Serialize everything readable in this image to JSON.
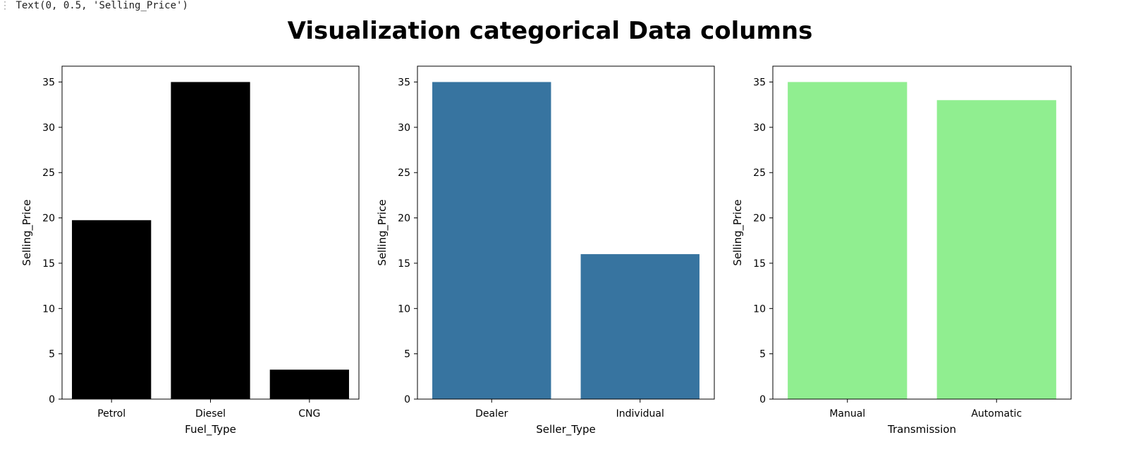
{
  "output": {
    "marker": "⋮",
    "text": "Text(0, 0.5, 'Selling_Price')"
  },
  "figure": {
    "suptitle": "Visualization categorical Data columns"
  },
  "chart_data": [
    {
      "type": "bar",
      "categories": [
        "Petrol",
        "Diesel",
        "CNG"
      ],
      "values": [
        19.75,
        35.0,
        3.25
      ],
      "xlabel": "Fuel_Type",
      "ylabel": "Selling_Price",
      "ylim": [
        0,
        36.75
      ],
      "yticks": [
        0,
        5,
        10,
        15,
        20,
        25,
        30,
        35
      ],
      "color": "#000000",
      "grid": false
    },
    {
      "type": "bar",
      "categories": [
        "Dealer",
        "Individual"
      ],
      "values": [
        35.0,
        16.0
      ],
      "xlabel": "Seller_Type",
      "ylabel": "Selling_Price",
      "ylim": [
        0,
        36.75
      ],
      "yticks": [
        0,
        5,
        10,
        15,
        20,
        25,
        30,
        35
      ],
      "color": "#3774a0",
      "grid": false
    },
    {
      "type": "bar",
      "categories": [
        "Manual",
        "Automatic"
      ],
      "values": [
        35.0,
        33.0
      ],
      "xlabel": "Transmission",
      "ylabel": "Selling_Price",
      "ylim": [
        0,
        36.75
      ],
      "yticks": [
        0,
        5,
        10,
        15,
        20,
        25,
        30,
        35
      ],
      "color": "#90ee90",
      "grid": false
    }
  ]
}
